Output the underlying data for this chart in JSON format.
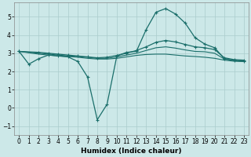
{
  "title": "",
  "xlabel": "Humidex (Indice chaleur)",
  "ylabel": "",
  "bg_color": "#cce8e8",
  "grid_color": "#aacccc",
  "line_color": "#1a6e6a",
  "xlim": [
    -0.5,
    23.5
  ],
  "ylim": [
    -1.5,
    5.8
  ],
  "yticks": [
    -1,
    0,
    1,
    2,
    3,
    4,
    5
  ],
  "xticks": [
    0,
    1,
    2,
    3,
    4,
    5,
    6,
    7,
    8,
    9,
    10,
    11,
    12,
    13,
    14,
    15,
    16,
    17,
    18,
    19,
    20,
    21,
    22,
    23
  ],
  "series1_x": [
    0,
    1,
    2,
    3,
    4,
    5,
    6,
    7,
    8,
    9,
    10,
    11,
    12,
    13,
    14,
    15,
    16,
    17,
    18,
    19,
    20,
    21,
    22,
    23
  ],
  "series1_y": [
    3.1,
    2.4,
    2.7,
    2.9,
    2.85,
    2.8,
    2.55,
    1.7,
    -0.65,
    0.2,
    2.85,
    3.05,
    3.1,
    4.3,
    5.25,
    5.45,
    5.15,
    4.65,
    3.85,
    3.5,
    3.3,
    2.7,
    2.6,
    2.55
  ],
  "series2_x": [
    0,
    2,
    3,
    4,
    5,
    6,
    7,
    8,
    9,
    10,
    11,
    12,
    13,
    14,
    15,
    16,
    17,
    18,
    19,
    20,
    21,
    22,
    23
  ],
  "series2_y": [
    3.1,
    3.05,
    3.0,
    2.95,
    2.9,
    2.85,
    2.8,
    2.75,
    2.78,
    2.88,
    3.0,
    3.15,
    3.35,
    3.6,
    3.7,
    3.62,
    3.48,
    3.35,
    3.3,
    3.2,
    2.75,
    2.65,
    2.62
  ],
  "series3_x": [
    0,
    2,
    3,
    4,
    5,
    6,
    7,
    8,
    9,
    10,
    11,
    12,
    13,
    14,
    15,
    16,
    17,
    18,
    19,
    20,
    21,
    22,
    23
  ],
  "series3_y": [
    3.1,
    3.0,
    2.95,
    2.9,
    2.85,
    2.82,
    2.78,
    2.72,
    2.72,
    2.8,
    2.9,
    3.0,
    3.15,
    3.3,
    3.35,
    3.28,
    3.18,
    3.1,
    3.08,
    3.0,
    2.68,
    2.6,
    2.57
  ],
  "series4_x": [
    0,
    2,
    3,
    4,
    5,
    6,
    7,
    8,
    9,
    10,
    11,
    12,
    13,
    14,
    15,
    16,
    17,
    18,
    19,
    20,
    21,
    22,
    23
  ],
  "series4_y": [
    3.1,
    2.95,
    2.9,
    2.85,
    2.82,
    2.78,
    2.72,
    2.68,
    2.68,
    2.72,
    2.8,
    2.88,
    2.93,
    2.95,
    2.95,
    2.9,
    2.85,
    2.82,
    2.78,
    2.72,
    2.62,
    2.56,
    2.54
  ]
}
